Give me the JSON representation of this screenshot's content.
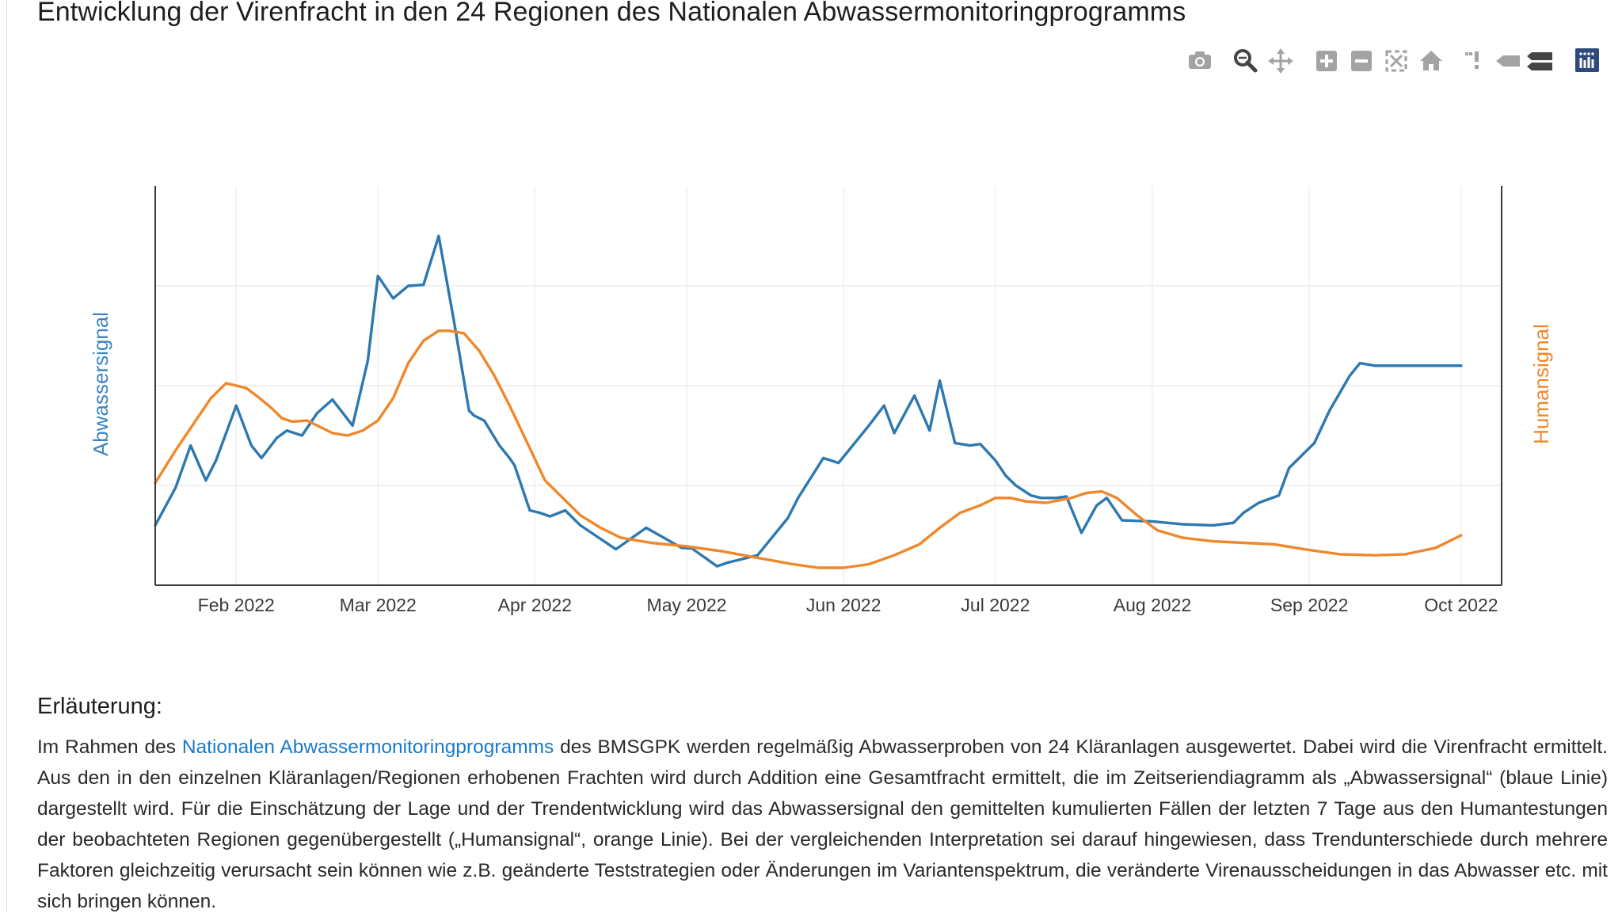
{
  "page": {
    "title": "Entwicklung der Virenfracht in den 24 Regionen des Nationalen Abwassermonitoringprogramms"
  },
  "modebar": {
    "icons": [
      "camera-icon",
      "zoom-icon",
      "pan-icon",
      "zoom-in-icon",
      "zoom-out-icon",
      "autoscale-icon",
      "reset-axes-icon",
      "spike-lines-icon",
      "hover-closest-icon",
      "hover-compare-icon",
      "plotly-logo-icon"
    ]
  },
  "chart_data": {
    "type": "line",
    "xlabel": "",
    "y_left_label": "Abwassersignal",
    "y_right_label": "Humansignal",
    "x_tick_labels": [
      "Feb 2022",
      "Mar 2022",
      "Apr 2022",
      "May 2022",
      "Jun 2022",
      "Jul 2022",
      "Aug 2022",
      "Sep 2022",
      "Oct 2022"
    ],
    "x_ticks": [
      "2022-02-01",
      "2022-03-01",
      "2022-04-01",
      "2022-05-01",
      "2022-06-01",
      "2022-07-01",
      "2022-08-01",
      "2022-09-01",
      "2022-10-01"
    ],
    "xlim": [
      "2022-01-16",
      "2022-10-09"
    ],
    "y_tick_labels_shown": false,
    "grid": true,
    "colors": {
      "abwasser": "#2e78b0",
      "human": "#f0872a",
      "left_axis_label": "#3b84c4",
      "right_axis_label": "#f0872a"
    },
    "series": [
      {
        "key": "abwasser",
        "axis": "left",
        "color": "#2e78b0",
        "x": [
          "2022-01-16",
          "2022-01-20",
          "2022-01-23",
          "2022-01-26",
          "2022-01-28",
          "2022-02-01",
          "2022-02-04",
          "2022-02-06",
          "2022-02-09",
          "2022-02-11",
          "2022-02-14",
          "2022-02-17",
          "2022-02-20",
          "2022-02-24",
          "2022-02-27",
          "2022-03-01",
          "2022-03-04",
          "2022-03-07",
          "2022-03-10",
          "2022-03-13",
          "2022-03-16",
          "2022-03-19",
          "2022-03-20",
          "2022-03-22",
          "2022-03-25",
          "2022-03-27",
          "2022-03-28",
          "2022-03-31",
          "2022-04-02",
          "2022-04-04",
          "2022-04-07",
          "2022-04-10",
          "2022-04-17",
          "2022-04-23",
          "2022-04-30",
          "2022-05-02",
          "2022-05-07",
          "2022-05-09",
          "2022-05-15",
          "2022-05-21",
          "2022-05-23",
          "2022-05-28",
          "2022-05-31",
          "2022-06-06",
          "2022-06-09",
          "2022-06-11",
          "2022-06-15",
          "2022-06-18",
          "2022-06-20",
          "2022-06-23",
          "2022-06-26",
          "2022-06-28",
          "2022-07-01",
          "2022-07-03",
          "2022-07-05",
          "2022-07-08",
          "2022-07-10",
          "2022-07-13",
          "2022-07-15",
          "2022-07-18",
          "2022-07-21",
          "2022-07-23",
          "2022-07-26",
          "2022-08-01",
          "2022-08-07",
          "2022-08-13",
          "2022-08-17",
          "2022-08-19",
          "2022-08-22",
          "2022-08-26",
          "2022-08-28",
          "2022-09-02",
          "2022-09-05",
          "2022-09-09",
          "2022-09-11",
          "2022-09-14",
          "2022-09-17",
          "2022-09-20",
          "2022-09-23",
          "2022-09-26",
          "2022-09-30",
          "2022-10-01"
        ],
        "y": [
          1.2,
          1.95,
          2.8,
          2.1,
          2.5,
          3.6,
          2.8,
          2.55,
          2.95,
          3.1,
          3.0,
          3.45,
          3.72,
          3.2,
          4.5,
          6.2,
          5.75,
          6.0,
          6.02,
          7.0,
          5.3,
          3.5,
          3.4,
          3.3,
          2.8,
          2.55,
          2.4,
          1.5,
          1.45,
          1.38,
          1.5,
          1.2,
          0.72,
          1.15,
          0.75,
          0.74,
          0.38,
          0.45,
          0.6,
          1.35,
          1.75,
          2.55,
          2.45,
          3.2,
          3.6,
          3.05,
          3.8,
          3.1,
          4.1,
          2.85,
          2.8,
          2.83,
          2.5,
          2.2,
          2.0,
          1.8,
          1.75,
          1.75,
          1.78,
          1.05,
          1.6,
          1.75,
          1.3,
          1.28,
          1.22,
          1.2,
          1.25,
          1.45,
          1.65,
          1.8,
          2.35,
          2.85,
          3.5,
          4.2,
          4.45,
          4.4,
          4.4,
          4.4,
          4.4,
          4.4,
          4.4,
          4.4
        ]
      },
      {
        "key": "human",
        "axis": "right",
        "color": "#f0872a",
        "x": [
          "2022-01-16",
          "2022-01-20",
          "2022-01-24",
          "2022-01-27",
          "2022-01-30",
          "2022-02-01",
          "2022-02-03",
          "2022-02-05",
          "2022-02-08",
          "2022-02-10",
          "2022-02-12",
          "2022-02-15",
          "2022-02-18",
          "2022-02-20",
          "2022-02-23",
          "2022-02-26",
          "2022-03-01",
          "2022-03-04",
          "2022-03-07",
          "2022-03-10",
          "2022-03-13",
          "2022-03-15",
          "2022-03-18",
          "2022-03-21",
          "2022-03-24",
          "2022-03-27",
          "2022-03-31",
          "2022-04-03",
          "2022-04-06",
          "2022-04-10",
          "2022-04-14",
          "2022-04-18",
          "2022-04-24",
          "2022-05-01",
          "2022-05-08",
          "2022-05-15",
          "2022-05-22",
          "2022-05-27",
          "2022-06-01",
          "2022-06-06",
          "2022-06-11",
          "2022-06-16",
          "2022-06-20",
          "2022-06-24",
          "2022-06-28",
          "2022-07-01",
          "2022-07-04",
          "2022-07-07",
          "2022-07-11",
          "2022-07-16",
          "2022-07-19",
          "2022-07-22",
          "2022-07-25",
          "2022-07-29",
          "2022-08-02",
          "2022-08-07",
          "2022-08-13",
          "2022-08-19",
          "2022-08-25",
          "2022-08-31",
          "2022-09-07",
          "2022-09-14",
          "2022-09-20",
          "2022-09-26",
          "2022-09-30",
          "2022-10-01"
        ],
        "y": [
          2.05,
          2.7,
          3.3,
          3.75,
          4.05,
          4.0,
          3.95,
          3.8,
          3.55,
          3.35,
          3.28,
          3.3,
          3.15,
          3.05,
          3.0,
          3.1,
          3.3,
          3.75,
          4.45,
          4.9,
          5.1,
          5.1,
          5.05,
          4.7,
          4.2,
          3.6,
          2.75,
          2.1,
          1.8,
          1.4,
          1.15,
          0.95,
          0.85,
          0.78,
          0.68,
          0.55,
          0.42,
          0.35,
          0.35,
          0.42,
          0.6,
          0.82,
          1.15,
          1.45,
          1.6,
          1.75,
          1.75,
          1.68,
          1.65,
          1.75,
          1.85,
          1.88,
          1.75,
          1.4,
          1.1,
          0.95,
          0.88,
          0.85,
          0.82,
          0.72,
          0.62,
          0.6,
          0.62,
          0.75,
          0.95,
          1.0
        ]
      }
    ]
  },
  "explanation": {
    "heading": "Erläuterung:",
    "text_before_link": "Im Rahmen des ",
    "link_text": "Nationalen Abwassermonitoringprogramms",
    "text_after_link": " des BMSGPK werden regelmäßig Abwasserproben von 24 Kläranlagen ausgewertet. Dabei wird die Virenfracht ermittelt. Aus den in den einzelnen Kläranlagen/Regionen erhobenen Frachten wird durch Addition eine Gesamtfracht ermittelt, die im Zeitseriendiagramm als „Abwassersignal“ (blaue Linie) dargestellt wird. Für die Einschätzung der Lage und der Trendentwicklung wird das Abwassersignal den gemittelten kumulierten Fällen der letzten 7 Tage aus den Humantestungen der beobachteten Regionen gegenübergestellt („Humansignal“, orange Linie). Bei der vergleichenden Interpretation sei darauf hingewiesen, dass Trendunterschiede durch mehrere Faktoren gleichzeitig verursacht sein können wie z.B. geänderte Teststrategien oder Änderungen im Variantenspektrum, die veränderte Virenausscheidungen in das Abwasser etc. mit sich bringen können."
  }
}
